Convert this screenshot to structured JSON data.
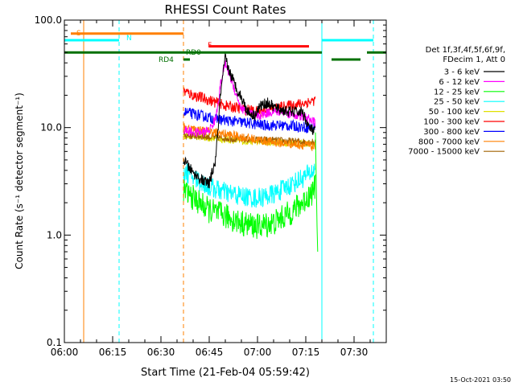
{
  "chart_data": {
    "type": "line",
    "title": "RHESSI Count Rates",
    "xlabel": "Start Time (21-Feb-04 05:59:42)",
    "ylabel": "Count Rate (s⁻¹ detector segment⁻¹)",
    "yscale": "log",
    "ylim": [
      0.1,
      100.0
    ],
    "xlim_minutes": [
      0,
      100
    ],
    "yticks": [
      {
        "value": 0.1,
        "label": "0.1"
      },
      {
        "value": 1.0,
        "label": "1.0"
      },
      {
        "value": 10.0,
        "label": "10.0"
      },
      {
        "value": 100.0,
        "label": "100.0"
      }
    ],
    "xticks": [
      {
        "minute": 0,
        "label": "06:00"
      },
      {
        "minute": 15,
        "label": "06:15"
      },
      {
        "minute": 30,
        "label": "06:30"
      },
      {
        "minute": 45,
        "label": "06:45"
      },
      {
        "minute": 60,
        "label": "07:00"
      },
      {
        "minute": 75,
        "label": "07:15"
      },
      {
        "minute": 90,
        "label": "07:30"
      }
    ],
    "legend": {
      "placement": "right",
      "header": [
        "Det 1f,3f,4f,5f,6f,9f,",
        "FDecim 1, Att 0"
      ],
      "entries": [
        {
          "label": "3 - 6 keV",
          "color": "#000000"
        },
        {
          "label": "6 - 12 keV",
          "color": "#ff00ff"
        },
        {
          "label": "12 - 25 keV",
          "color": "#00ff00"
        },
        {
          "label": "25 - 50 keV",
          "color": "#00ffff"
        },
        {
          "label": "50 - 100 keV",
          "color": "#e0e000"
        },
        {
          "label": "100 - 300 keV",
          "color": "#ff0000"
        },
        {
          "label": "300 - 800 keV",
          "color": "#0000ff"
        },
        {
          "label": "800 - 7000 keV",
          "color": "#ff8000"
        },
        {
          "label": "7000 - 15000 keV",
          "color": "#a06000"
        }
      ]
    },
    "series": [
      {
        "name": "3 - 6 keV",
        "color": "#000000",
        "x": [
          37,
          40,
          43,
          45,
          47,
          48.5,
          50,
          51,
          53,
          55,
          57,
          59,
          61,
          63,
          66,
          70,
          74,
          76,
          78
        ],
        "y": [
          5.0,
          3.8,
          3.2,
          3.0,
          5.0,
          20,
          45,
          35,
          25,
          19,
          14,
          13,
          16,
          17,
          15,
          14,
          14,
          10,
          9
        ]
      },
      {
        "name": "6 - 12 keV",
        "color": "#ff00ff",
        "x": [
          37,
          40,
          43,
          45,
          47,
          48.5,
          50,
          51,
          53,
          55,
          57,
          59,
          61,
          64,
          68,
          72,
          76,
          78
        ],
        "y": [
          9.5,
          9.0,
          9.0,
          9.5,
          12,
          25,
          40,
          33,
          22,
          15,
          14,
          13,
          13,
          14,
          14,
          13,
          12,
          11
        ]
      },
      {
        "name": "12 - 25 keV",
        "color": "#00ff00",
        "x": [
          37,
          41,
          45,
          50,
          55,
          60,
          65,
          70,
          74,
          77,
          78
        ],
        "y": [
          2.6,
          2.1,
          1.7,
          1.5,
          1.3,
          1.2,
          1.3,
          1.6,
          2.0,
          2.5,
          2.8
        ]
      },
      {
        "name": "25 - 50 keV",
        "color": "#00ffff",
        "x": [
          37,
          41,
          45,
          50,
          55,
          60,
          65,
          70,
          74,
          77,
          78
        ],
        "y": [
          4.0,
          3.3,
          2.8,
          2.5,
          2.3,
          2.2,
          2.4,
          2.9,
          3.4,
          3.9,
          4.2
        ]
      },
      {
        "name": "50 - 100 keV",
        "color": "#e0e000",
        "x": [
          37,
          45,
          55,
          65,
          72,
          78
        ],
        "y": [
          8.5,
          8.0,
          7.5,
          7.3,
          7.2,
          7.0
        ]
      },
      {
        "name": "100 - 300 keV",
        "color": "#ff0000",
        "x": [
          37,
          40,
          45,
          50,
          55,
          60,
          65,
          70,
          75,
          78
        ],
        "y": [
          22,
          20,
          18,
          16,
          15,
          14,
          15,
          16,
          17,
          18
        ]
      },
      {
        "name": "300 - 800 keV",
        "color": "#0000ff",
        "x": [
          37,
          42,
          47,
          52,
          57,
          62,
          67,
          72,
          76,
          78
        ],
        "y": [
          14,
          13,
          12,
          11.5,
          11,
          10.5,
          10.5,
          10.3,
          10.0,
          10.0
        ]
      },
      {
        "name": "800 - 7000 keV",
        "color": "#ff8000",
        "x": [
          37,
          42,
          47,
          52,
          57,
          62,
          67,
          72,
          76,
          78
        ],
        "y": [
          10,
          9.5,
          9.0,
          8.5,
          8.0,
          7.5,
          7.2,
          7.0,
          6.8,
          6.5
        ]
      },
      {
        "name": "7000 - 15000 keV",
        "color": "#a06000",
        "x": [
          37,
          45,
          55,
          65,
          72,
          78
        ],
        "y": [
          8.5,
          8.2,
          7.8,
          7.6,
          7.4,
          7.3
        ]
      }
    ],
    "flag_bars": [
      {
        "label": "S",
        "color": "#ff8000",
        "y_value": 75,
        "segments": [
          [
            2,
            37
          ]
        ]
      },
      {
        "label": "N",
        "color": "#00ffff",
        "y_value": 65,
        "segments": [
          [
            0,
            17
          ],
          [
            80,
            96
          ]
        ]
      },
      {
        "label": "F",
        "color": "#ff0000",
        "y_value": 57,
        "segments": [
          [
            45,
            76
          ]
        ]
      },
      {
        "label": "RD0",
        "color": "#007000",
        "y_value": 50,
        "segments": [
          [
            0,
            80
          ],
          [
            94,
            100
          ]
        ]
      },
      {
        "label": "RD4",
        "color": "#007000",
        "y_value": 43,
        "segments": [
          [
            37,
            39
          ],
          [
            83,
            92
          ]
        ]
      }
    ],
    "vertical_lines": [
      {
        "minute": 0,
        "color": "#00ffff",
        "style": "solid"
      },
      {
        "minute": 6,
        "color": "#ff8000",
        "style": "solid"
      },
      {
        "minute": 17,
        "color": "#00ffff",
        "style": "dashed"
      },
      {
        "minute": 37,
        "color": "#ff8000",
        "style": "dashed"
      },
      {
        "minute": 80,
        "color": "#00ffff",
        "style": "solid"
      },
      {
        "minute": 96,
        "color": "#00ffff",
        "style": "dashed"
      }
    ],
    "grid": false
  },
  "footer": {
    "timestamp": "15-Oct-2021 03:50"
  }
}
